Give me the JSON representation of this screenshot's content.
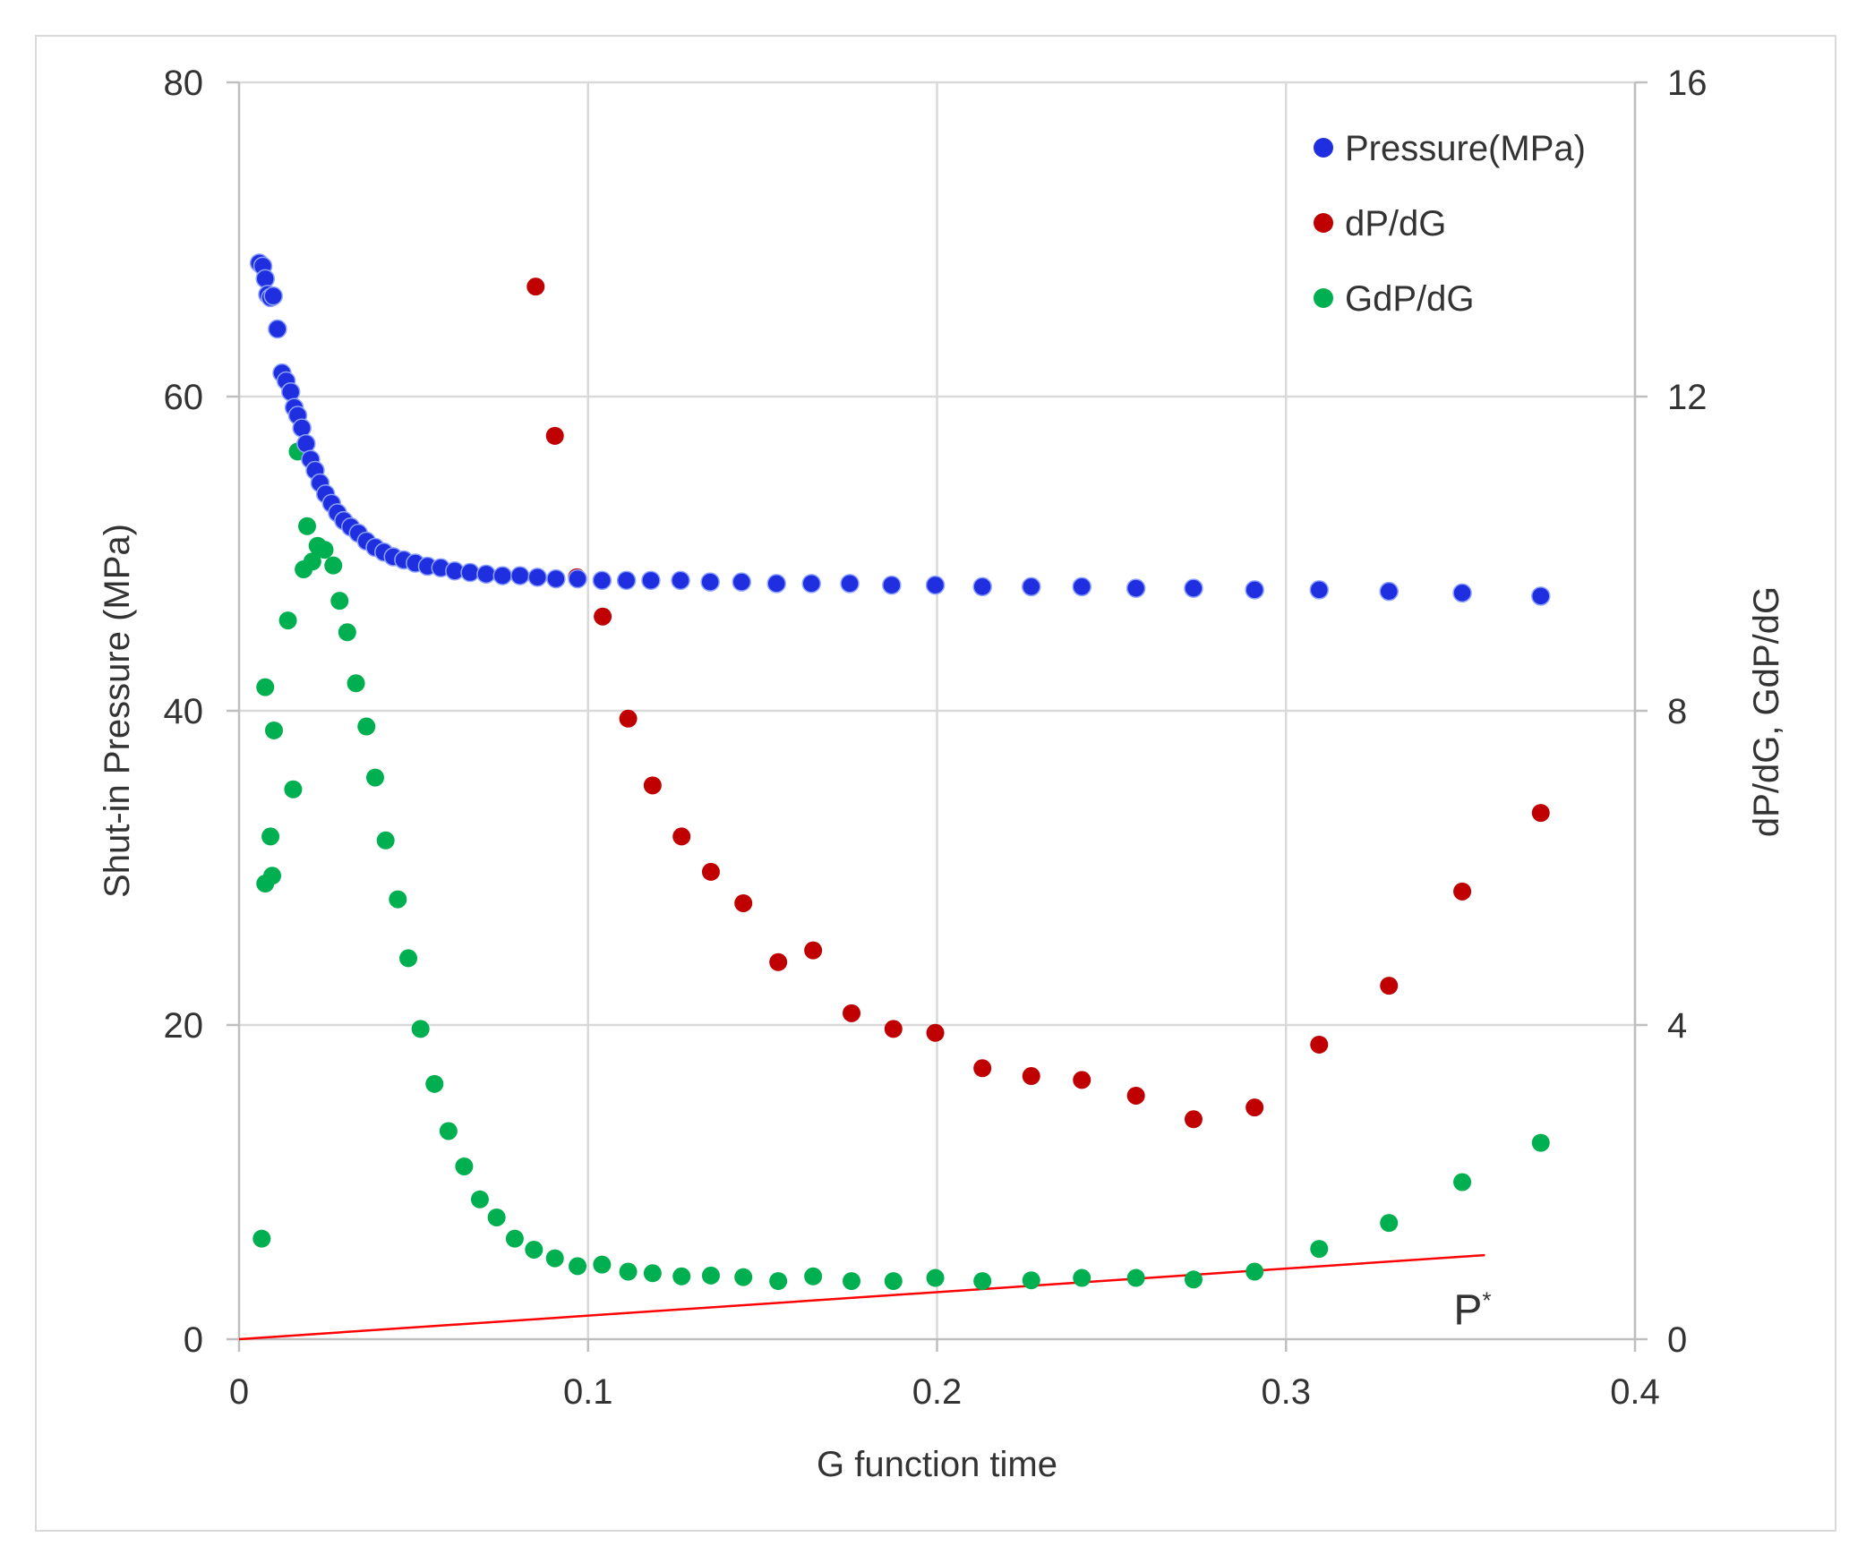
{
  "chart_data": {
    "type": "scatter",
    "title": "",
    "xlabel": "G function time",
    "ylabel_left": "Shut-in Pressure (MPa)",
    "ylabel_right": "dP/dG, GdP/dG",
    "xlim": [
      0,
      0.4
    ],
    "ylim_left": [
      0,
      80
    ],
    "ylim_right": [
      0,
      16
    ],
    "x_ticks": [
      0,
      0.1,
      0.2,
      0.3,
      0.4
    ],
    "x_tick_labels": [
      "0",
      "0.1",
      "0.2",
      "0.3",
      "0.4"
    ],
    "y_left_ticks": [
      0,
      20,
      40,
      60,
      80
    ],
    "y_left_tick_labels": [
      "0",
      "20",
      "40",
      "60",
      "80"
    ],
    "y_right_ticks": [
      0,
      4,
      8,
      12,
      16
    ],
    "y_right_tick_labels": [
      "0",
      "4",
      "8",
      "12",
      "16"
    ],
    "grid": true,
    "legend_position": "top-right",
    "series": [
      {
        "name": "Pressure(MPa)",
        "axis": "left",
        "color": "#1f2fe0",
        "x": [
          0.0058,
          0.0068,
          0.0075,
          0.0082,
          0.009,
          0.0098,
          0.011,
          0.0123,
          0.0135,
          0.0148,
          0.0158,
          0.0168,
          0.018,
          0.0192,
          0.0205,
          0.0218,
          0.0232,
          0.0248,
          0.0265,
          0.0282,
          0.03,
          0.032,
          0.0342,
          0.0365,
          0.039,
          0.0415,
          0.0442,
          0.0472,
          0.0505,
          0.054,
          0.0578,
          0.0618,
          0.0662,
          0.0708,
          0.0755,
          0.0805,
          0.0855,
          0.0908,
          0.097,
          0.104,
          0.111,
          0.118,
          0.1265,
          0.135,
          0.144,
          0.154,
          0.164,
          0.175,
          0.187,
          0.1995,
          0.213,
          0.227,
          0.2415,
          0.257,
          0.2735,
          0.291,
          0.3095,
          0.3295,
          0.3505,
          0.373
        ],
        "y": [
          68.5,
          68.3,
          67.5,
          66.5,
          66.3,
          66.4,
          64.3,
          61.5,
          61.0,
          60.3,
          59.3,
          58.8,
          58.0,
          57.0,
          56.0,
          55.3,
          54.5,
          53.8,
          53.2,
          52.6,
          52.1,
          51.7,
          51.3,
          50.8,
          50.4,
          50.1,
          49.8,
          49.6,
          49.4,
          49.2,
          49.1,
          48.9,
          48.8,
          48.7,
          48.6,
          48.6,
          48.5,
          48.4,
          48.4,
          48.3,
          48.3,
          48.3,
          48.3,
          48.2,
          48.2,
          48.1,
          48.1,
          48.1,
          48.0,
          48.0,
          47.9,
          47.9,
          47.9,
          47.8,
          47.8,
          47.7,
          47.7,
          47.6,
          47.5,
          47.3
        ]
      },
      {
        "name": "dP/dG",
        "axis": "right",
        "color": "#c00000",
        "x": [
          0.085,
          0.0905,
          0.0968,
          0.1042,
          0.1115,
          0.1185,
          0.1268,
          0.1352,
          0.1445,
          0.1545,
          0.1645,
          0.1755,
          0.1875,
          0.1995,
          0.213,
          0.227,
          0.2415,
          0.257,
          0.2735,
          0.291,
          0.3095,
          0.3295,
          0.3505,
          0.373
        ],
        "y": [
          13.4,
          11.5,
          9.7,
          9.2,
          7.9,
          7.05,
          6.4,
          5.95,
          5.55,
          4.8,
          4.95,
          4.15,
          3.95,
          3.9,
          3.45,
          3.35,
          3.3,
          3.1,
          2.8,
          2.95,
          3.75,
          4.5,
          5.7,
          6.7
        ]
      },
      {
        "name": "GdP/dG",
        "axis": "right",
        "color": "#00b050",
        "x": [
          0.0065,
          0.0075,
          0.0075,
          0.009,
          0.0095,
          0.01,
          0.014,
          0.0155,
          0.0168,
          0.0185,
          0.0195,
          0.021,
          0.0225,
          0.0245,
          0.027,
          0.0288,
          0.031,
          0.0335,
          0.0365,
          0.039,
          0.042,
          0.0455,
          0.0485,
          0.052,
          0.056,
          0.06,
          0.0645,
          0.069,
          0.0738,
          0.079,
          0.0845,
          0.0905,
          0.097,
          0.104,
          0.1115,
          0.1185,
          0.1268,
          0.1352,
          0.1445,
          0.1545,
          0.1645,
          0.1755,
          0.1875,
          0.1995,
          0.213,
          0.227,
          0.2415,
          0.257,
          0.2735,
          0.291,
          0.3095,
          0.3295,
          0.3505,
          0.373
        ],
        "y": [
          1.28,
          5.8,
          8.3,
          6.4,
          5.9,
          7.75,
          9.15,
          7.0,
          11.3,
          9.8,
          10.35,
          9.9,
          10.1,
          10.05,
          9.85,
          9.4,
          9.0,
          8.35,
          7.8,
          7.15,
          6.35,
          5.6,
          4.85,
          3.95,
          3.25,
          2.65,
          2.2,
          1.78,
          1.55,
          1.28,
          1.14,
          1.03,
          0.93,
          0.95,
          0.86,
          0.84,
          0.8,
          0.81,
          0.79,
          0.74,
          0.8,
          0.74,
          0.74,
          0.78,
          0.74,
          0.75,
          0.78,
          0.78,
          0.76,
          0.86,
          1.15,
          1.48,
          2.0,
          2.5
        ]
      }
    ],
    "trend_line": {
      "name": "P*",
      "color": "#ff0000",
      "x": [
        0.0,
        0.357
      ],
      "y_right": [
        0.0,
        1.07
      ]
    },
    "annotations": [
      {
        "text": "P*",
        "x": 0.348,
        "y_right": 0.3
      }
    ]
  }
}
